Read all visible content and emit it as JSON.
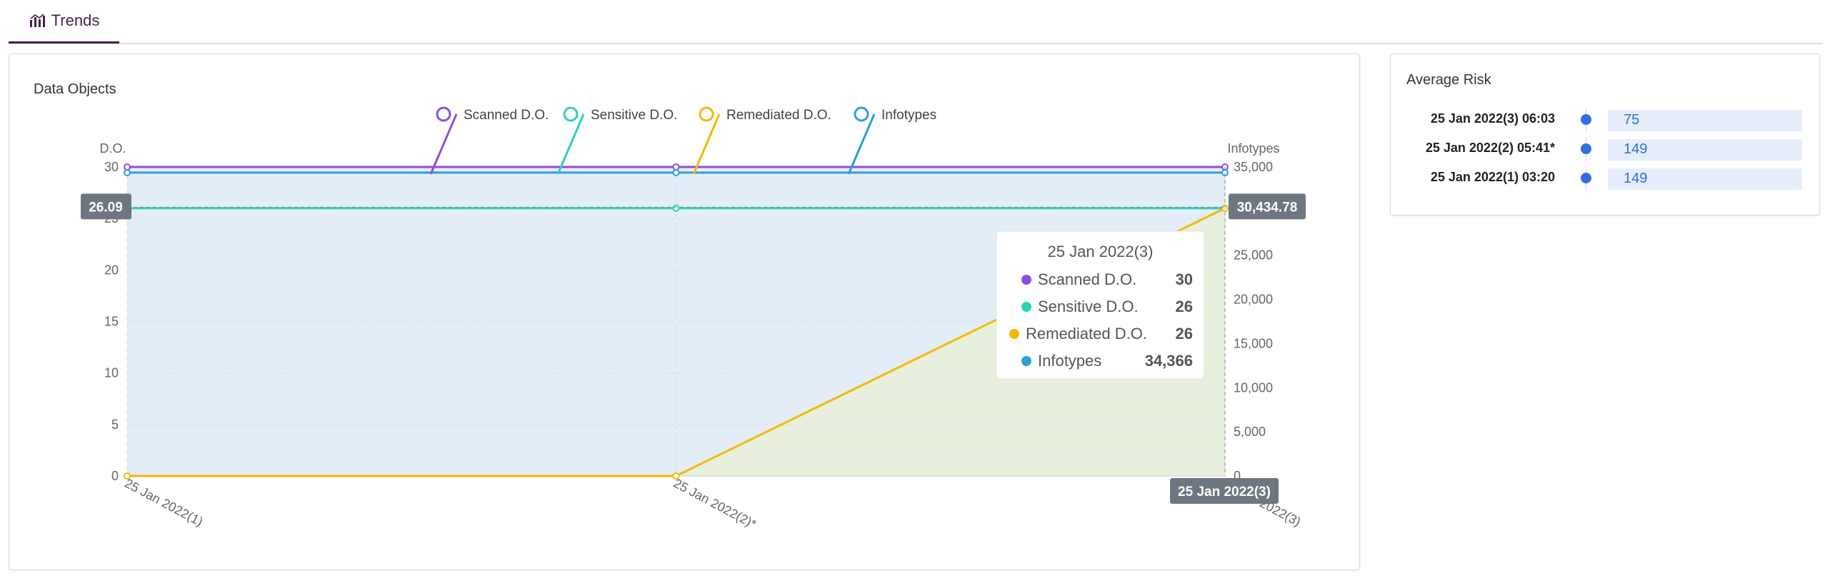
{
  "tabs": [
    {
      "label": "Trends"
    }
  ],
  "chart_card": {
    "title": "Data Objects"
  },
  "risk_card": {
    "title": "Average Risk",
    "rows": [
      {
        "label": "25 Jan 2022(3) 06:03",
        "value": "75"
      },
      {
        "label": "25 Jan 2022(2) 05:41*",
        "value": "149"
      },
      {
        "label": "25 Jan 2022(1) 03:20",
        "value": "149"
      }
    ]
  },
  "tooltip": {
    "title": "25 Jan 2022(3)",
    "rows": [
      {
        "name": "Scanned D.O.",
        "value": "30",
        "color": "#8a4fe0"
      },
      {
        "name": "Sensitive D.O.",
        "value": "26",
        "color": "#2ed0b8"
      },
      {
        "name": "Remediated D.O.",
        "value": "26",
        "color": "#f5b800"
      },
      {
        "name": "Infotypes",
        "value": "34,366",
        "color": "#2b9fd8"
      }
    ]
  },
  "axis_pointers": {
    "left_value": "26.09",
    "right_value": "30,434.78",
    "x_label": "25 Jan 2022(3)"
  },
  "chart_data": {
    "type": "line",
    "x": [
      "25 Jan 2022(1)",
      "25 Jan 2022(2)*",
      "25 Jan 2022(3)"
    ],
    "x_tick_labels": [
      "25 Jan 2022(1)",
      "25 Jan 2022(2)*",
      "25 Jan 2022(3)"
    ],
    "ylabel": "D.O.",
    "ylim": [
      0,
      30
    ],
    "yticks": [
      0,
      5,
      10,
      15,
      20,
      25,
      30
    ],
    "y2label": "Infotypes",
    "y2lim": [
      0,
      35000
    ],
    "y2ticks": [
      0,
      5000,
      10000,
      15000,
      20000,
      25000,
      30000,
      35000
    ],
    "y2tick_labels": [
      "0",
      "5,000",
      "10,000",
      "15,000",
      "20,000",
      "25,000",
      "30,000",
      "35,000"
    ],
    "grid": true,
    "legend": "top-center",
    "series": [
      {
        "name": "Scanned D.O.",
        "axis": "left",
        "values": [
          30,
          30,
          30
        ],
        "color": "#8a4fe0",
        "area": "#efeafc"
      },
      {
        "name": "Sensitive D.O.",
        "axis": "left",
        "values": [
          26,
          26,
          26
        ],
        "color": "#2ed0b8",
        "area": "none"
      },
      {
        "name": "Remediated D.O.",
        "axis": "left",
        "values": [
          0,
          0,
          26
        ],
        "color": "#f5b800",
        "area": "#e6f0dd"
      },
      {
        "name": "Infotypes",
        "axis": "right",
        "values": [
          34366,
          34366,
          34366
        ],
        "color": "#2b9fd8",
        "area": "#e2edf6"
      }
    ]
  }
}
